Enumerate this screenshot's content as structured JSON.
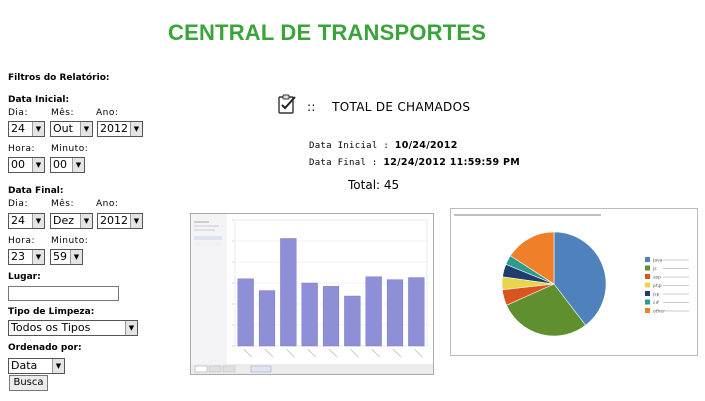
{
  "app_title": "CENTRAL DE TRANSPORTES",
  "filters": {
    "heading": "Filtros do Relatório:",
    "start_date": {
      "heading": "Data Inicial:",
      "day_label": "Dia:",
      "month_label": "Mês:",
      "year_label": "Ano:",
      "day": "24",
      "month": "Out",
      "year": "2012",
      "hour_label": "Hora:",
      "minute_label": "Minuto:",
      "hour": "00",
      "minute": "00"
    },
    "end_date": {
      "heading": "Data Final:",
      "day_label": "Dia:",
      "month_label": "Mês:",
      "year_label": "Ano:",
      "day": "24",
      "month": "Dez",
      "year": "2012",
      "hour_label": "Hora:",
      "minute_label": "Minuto:",
      "hour": "23",
      "minute": "59"
    },
    "place_label": "Lugar:",
    "place_value": "",
    "cleaning_type_label": "Tipo de Limpeza:",
    "cleaning_type_value": "Todos os Tipos",
    "order_by_label": "Ordenado por:",
    "order_by_value": "Data",
    "search_button": "Busca"
  },
  "report": {
    "icon": "clipboard-check-icon",
    "title_prefix": "::",
    "title": "TOTAL DE CHAMADOS",
    "start_label": "Data Inicial :",
    "start_value": "10/24/2012",
    "end_label": "Data Final :",
    "end_value": "12/24/2012 11:59:59 PM",
    "total": "Total: 45"
  },
  "chart_data": [
    {
      "type": "bar",
      "categories": [
        "",
        "",
        "",
        "",
        "",
        "",
        "",
        "",
        ""
      ],
      "values": [
        1600,
        1320,
        2560,
        1500,
        1420,
        1190,
        1650,
        1580,
        1630
      ],
      "ylim": [
        0,
        3000
      ],
      "bar_color": "#8f8fd8",
      "grid": true
    },
    {
      "type": "pie",
      "labels": [
        "java",
        "js",
        "asp",
        "php",
        "jsp",
        "c#",
        "other"
      ],
      "values": [
        40,
        29,
        5,
        4,
        4,
        3,
        16
      ],
      "colors": [
        "#4f81bd",
        "#5f8f2f",
        "#d9541e",
        "#e8d44d",
        "#1f3e6e",
        "#2e9b8a",
        "#f07f2a"
      ],
      "legend": "right"
    }
  ]
}
